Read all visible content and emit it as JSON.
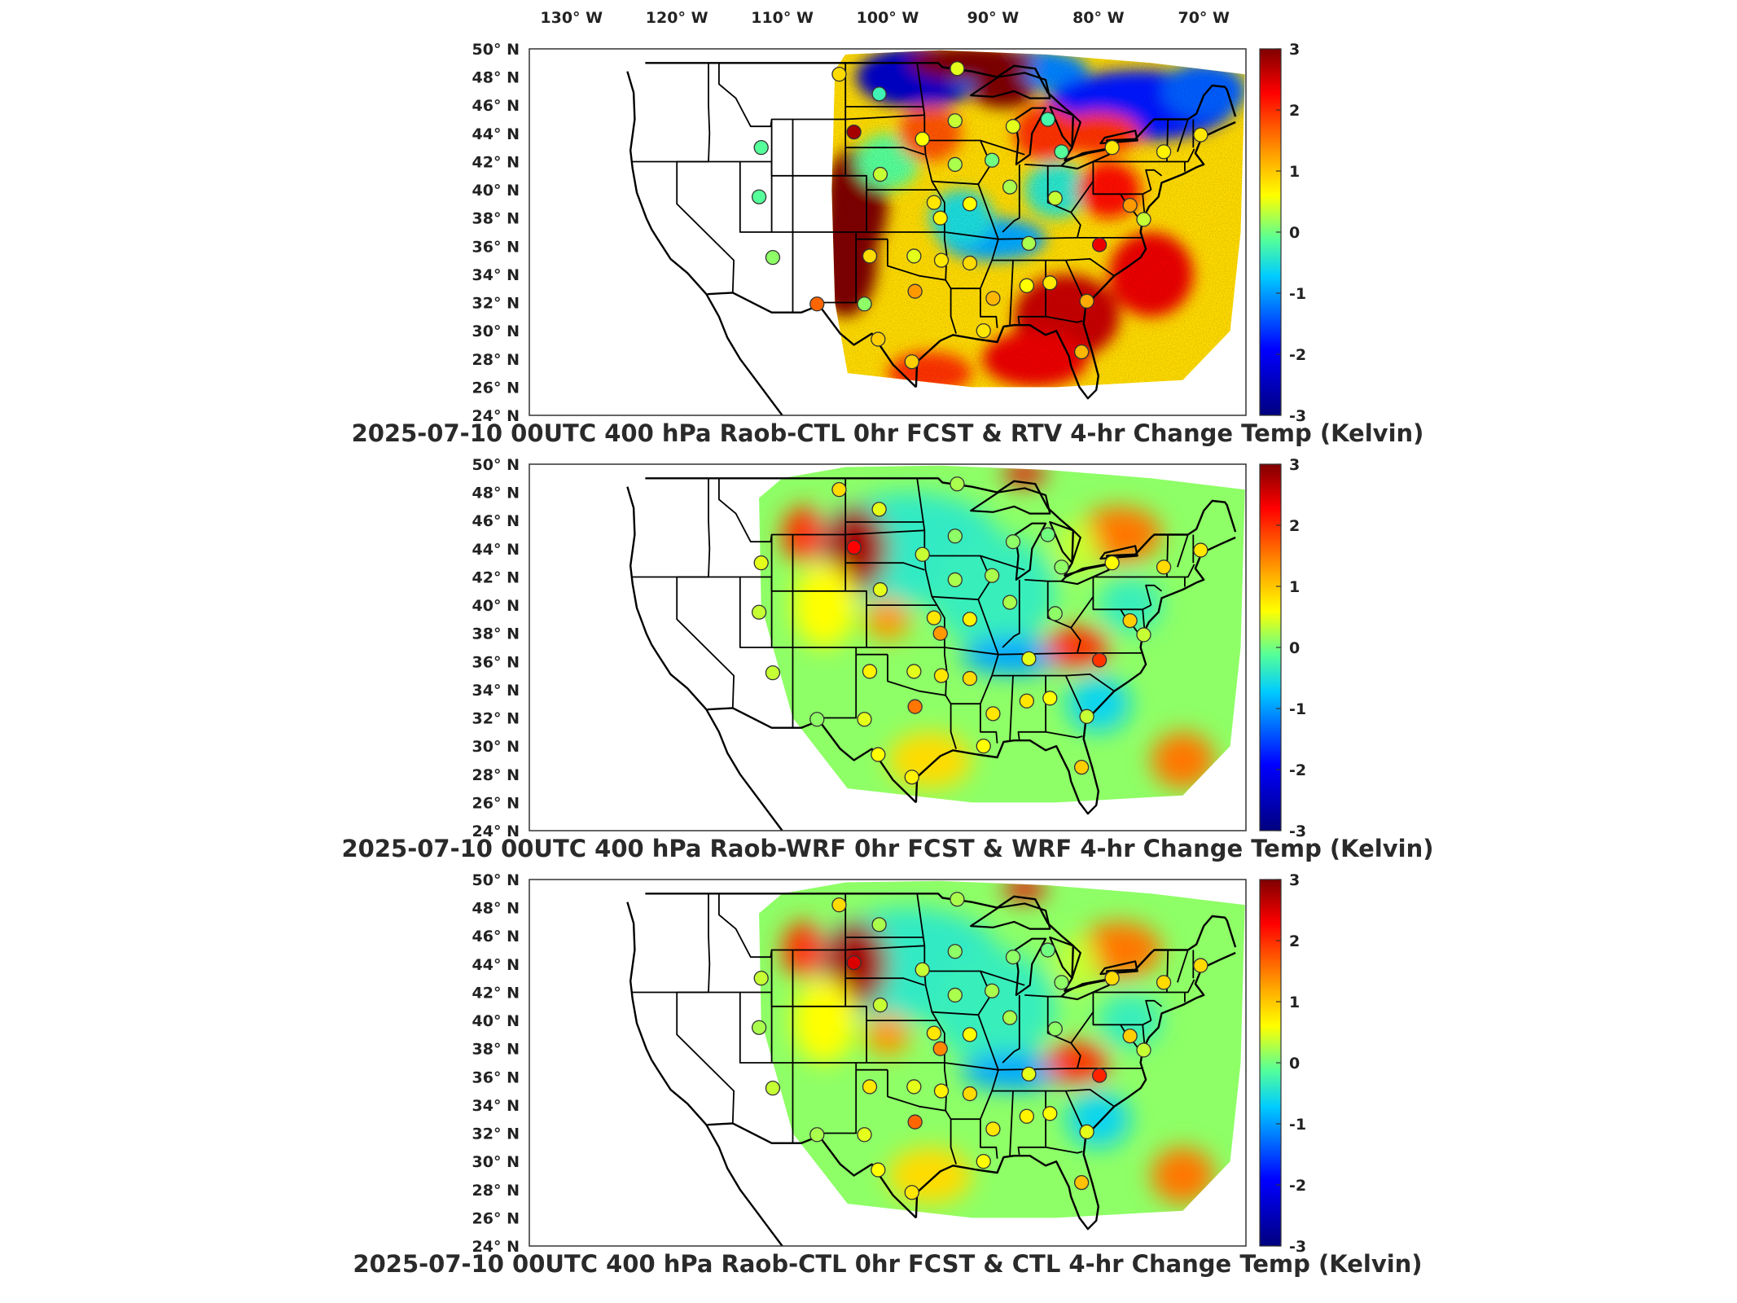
{
  "figure": {
    "longitude_labels": [
      "130",
      "120",
      "110",
      "100",
      "90",
      "80",
      "70"
    ],
    "longitude_suffix": "W",
    "latitude_labels": [
      "50",
      "48",
      "46",
      "44",
      "42",
      "40",
      "38",
      "36",
      "34",
      "32",
      "30",
      "28",
      "26",
      "24"
    ],
    "latitude_suffix": "N",
    "degree_symbol": "°"
  },
  "colorbar": {
    "ticks": [
      "3",
      "2",
      "1",
      "0",
      "-1",
      "-2",
      "-3"
    ],
    "colors": [
      "#7f0000",
      "#ff0000",
      "#ffff00",
      "#55ff99",
      "#00ccff",
      "#0000ff",
      "#00007f"
    ]
  },
  "panels": [
    {
      "title": "2025-07-10 00UTC 400 hPa Raob-CTL 0hr FCST & RTV 4-hr Change Temp (Kelvin)",
      "field_style": "noisy",
      "stations": [
        {
          "lon": -104.6,
          "lat": 48.2,
          "value": 0.9
        },
        {
          "lon": -100.8,
          "lat": 46.8,
          "value": -0.3
        },
        {
          "lon": -103.2,
          "lat": 44.1,
          "value": 2.8
        },
        {
          "lon": -112.0,
          "lat": 43.0,
          "value": 0.0
        },
        {
          "lon": -112.2,
          "lat": 39.5,
          "value": 0.0
        },
        {
          "lon": -110.9,
          "lat": 35.2,
          "value": 0.2
        },
        {
          "lon": -101.7,
          "lat": 35.3,
          "value": 0.9
        },
        {
          "lon": -102.2,
          "lat": 31.9,
          "value": 0.2
        },
        {
          "lon": -106.7,
          "lat": 31.9,
          "value": 1.7
        },
        {
          "lon": -97.4,
          "lat": 32.8,
          "value": 1.4
        },
        {
          "lon": -97.5,
          "lat": 35.3,
          "value": 0.5
        },
        {
          "lon": -94.9,
          "lat": 35.0,
          "value": 0.8
        },
        {
          "lon": -92.2,
          "lat": 34.8,
          "value": 0.9
        },
        {
          "lon": -90.0,
          "lat": 32.3,
          "value": 1.2
        },
        {
          "lon": -86.8,
          "lat": 33.2,
          "value": 0.6
        },
        {
          "lon": -84.6,
          "lat": 33.4,
          "value": 0.8
        },
        {
          "lon": -81.1,
          "lat": 32.1,
          "value": 1.3
        },
        {
          "lon": -79.9,
          "lat": 36.1,
          "value": 2.4
        },
        {
          "lon": -86.6,
          "lat": 36.2,
          "value": 0.3
        },
        {
          "lon": -84.1,
          "lat": 39.4,
          "value": 0.4
        },
        {
          "lon": -88.4,
          "lat": 40.2,
          "value": 0.3
        },
        {
          "lon": -92.2,
          "lat": 39.0,
          "value": 0.6
        },
        {
          "lon": -95.6,
          "lat": 39.1,
          "value": 0.8
        },
        {
          "lon": -100.7,
          "lat": 41.1,
          "value": 0.4
        },
        {
          "lon": -93.6,
          "lat": 41.8,
          "value": 0.3
        },
        {
          "lon": -90.1,
          "lat": 42.1,
          "value": 0.1
        },
        {
          "lon": -88.1,
          "lat": 44.5,
          "value": 0.5
        },
        {
          "lon": -84.8,
          "lat": 45.0,
          "value": -0.2
        },
        {
          "lon": -83.5,
          "lat": 42.7,
          "value": 0.0
        },
        {
          "lon": -93.6,
          "lat": 44.9,
          "value": 0.4
        },
        {
          "lon": -96.7,
          "lat": 43.6,
          "value": 0.6
        },
        {
          "lon": -93.4,
          "lat": 48.6,
          "value": 0.5
        },
        {
          "lon": -78.7,
          "lat": 43.0,
          "value": 0.8
        },
        {
          "lon": -73.8,
          "lat": 42.7,
          "value": 0.7
        },
        {
          "lon": -70.3,
          "lat": 43.9,
          "value": 0.8
        },
        {
          "lon": -77.0,
          "lat": 38.9,
          "value": 1.4
        },
        {
          "lon": -75.7,
          "lat": 37.9,
          "value": 0.4
        },
        {
          "lon": -81.6,
          "lat": 28.5,
          "value": 1.2
        },
        {
          "lon": -97.7,
          "lat": 27.8,
          "value": 1.0
        },
        {
          "lon": -100.9,
          "lat": 29.4,
          "value": 1.0
        },
        {
          "lon": -90.9,
          "lat": 30.0,
          "value": 0.8
        },
        {
          "lon": -95.0,
          "lat": 38.0,
          "value": 0.7
        }
      ]
    },
    {
      "title": "2025-07-10 00UTC 400 hPa Raob-WRF 0hr FCST & WRF 4-hr Change Temp (Kelvin)",
      "field_style": "smooth",
      "stations": [
        {
          "lon": -104.6,
          "lat": 48.2,
          "value": 0.9
        },
        {
          "lon": -100.8,
          "lat": 46.8,
          "value": 0.5
        },
        {
          "lon": -103.2,
          "lat": 44.1,
          "value": 2.3
        },
        {
          "lon": -112.0,
          "lat": 43.0,
          "value": 0.5
        },
        {
          "lon": -112.2,
          "lat": 39.5,
          "value": 0.4
        },
        {
          "lon": -110.9,
          "lat": 35.2,
          "value": 0.4
        },
        {
          "lon": -101.7,
          "lat": 35.3,
          "value": 0.7
        },
        {
          "lon": -102.2,
          "lat": 31.9,
          "value": 0.5
        },
        {
          "lon": -106.7,
          "lat": 31.9,
          "value": 0.2
        },
        {
          "lon": -97.4,
          "lat": 32.8,
          "value": 1.6
        },
        {
          "lon": -97.5,
          "lat": 35.3,
          "value": 0.5
        },
        {
          "lon": -94.9,
          "lat": 35.0,
          "value": 0.8
        },
        {
          "lon": -92.2,
          "lat": 34.8,
          "value": 0.9
        },
        {
          "lon": -90.0,
          "lat": 32.3,
          "value": 0.8
        },
        {
          "lon": -86.8,
          "lat": 33.2,
          "value": 0.8
        },
        {
          "lon": -84.6,
          "lat": 33.4,
          "value": 0.6
        },
        {
          "lon": -81.1,
          "lat": 32.1,
          "value": 0.4
        },
        {
          "lon": -79.9,
          "lat": 36.1,
          "value": 2.0
        },
        {
          "lon": -86.6,
          "lat": 36.2,
          "value": 0.5
        },
        {
          "lon": -84.1,
          "lat": 39.4,
          "value": 0.2
        },
        {
          "lon": -88.4,
          "lat": 40.2,
          "value": 0.3
        },
        {
          "lon": -92.2,
          "lat": 39.0,
          "value": 0.7
        },
        {
          "lon": -95.6,
          "lat": 39.1,
          "value": 0.8
        },
        {
          "lon": -100.7,
          "lat": 41.1,
          "value": 0.5
        },
        {
          "lon": -93.6,
          "lat": 41.8,
          "value": 0.3
        },
        {
          "lon": -90.1,
          "lat": 42.1,
          "value": 0.3
        },
        {
          "lon": -88.1,
          "lat": 44.5,
          "value": 0.2
        },
        {
          "lon": -84.8,
          "lat": 45.0,
          "value": 0.1
        },
        {
          "lon": -83.5,
          "lat": 42.7,
          "value": 0.2
        },
        {
          "lon": -93.6,
          "lat": 44.9,
          "value": 0.2
        },
        {
          "lon": -96.7,
          "lat": 43.6,
          "value": 0.4
        },
        {
          "lon": -93.4,
          "lat": 48.6,
          "value": 0.3
        },
        {
          "lon": -78.7,
          "lat": 43.0,
          "value": 0.6
        },
        {
          "lon": -73.8,
          "lat": 42.7,
          "value": 0.9
        },
        {
          "lon": -70.3,
          "lat": 43.9,
          "value": 0.8
        },
        {
          "lon": -77.0,
          "lat": 38.9,
          "value": 1.0
        },
        {
          "lon": -75.7,
          "lat": 37.9,
          "value": 0.4
        },
        {
          "lon": -81.6,
          "lat": 28.5,
          "value": 1.0
        },
        {
          "lon": -97.7,
          "lat": 27.8,
          "value": 0.7
        },
        {
          "lon": -100.9,
          "lat": 29.4,
          "value": 0.6
        },
        {
          "lon": -90.9,
          "lat": 30.0,
          "value": 0.6
        },
        {
          "lon": -95.0,
          "lat": 38.0,
          "value": 1.4
        }
      ]
    },
    {
      "title": "2025-07-10 00UTC 400 hPa Raob-CTL 0hr FCST & CTL 4-hr Change Temp (Kelvin)",
      "field_style": "smooth",
      "stations": [
        {
          "lon": -104.6,
          "lat": 48.2,
          "value": 0.9
        },
        {
          "lon": -100.8,
          "lat": 46.8,
          "value": 0.3
        },
        {
          "lon": -103.2,
          "lat": 44.1,
          "value": 2.5
        },
        {
          "lon": -112.0,
          "lat": 43.0,
          "value": 0.4
        },
        {
          "lon": -112.2,
          "lat": 39.5,
          "value": 0.3
        },
        {
          "lon": -110.9,
          "lat": 35.2,
          "value": 0.4
        },
        {
          "lon": -101.7,
          "lat": 35.3,
          "value": 0.8
        },
        {
          "lon": -102.2,
          "lat": 31.9,
          "value": 0.5
        },
        {
          "lon": -106.7,
          "lat": 31.9,
          "value": 0.3
        },
        {
          "lon": -97.4,
          "lat": 32.8,
          "value": 1.7
        },
        {
          "lon": -97.5,
          "lat": 35.3,
          "value": 0.5
        },
        {
          "lon": -94.9,
          "lat": 35.0,
          "value": 0.7
        },
        {
          "lon": -92.2,
          "lat": 34.8,
          "value": 0.9
        },
        {
          "lon": -90.0,
          "lat": 32.3,
          "value": 0.8
        },
        {
          "lon": -86.8,
          "lat": 33.2,
          "value": 0.7
        },
        {
          "lon": -84.6,
          "lat": 33.4,
          "value": 0.6
        },
        {
          "lon": -81.1,
          "lat": 32.1,
          "value": 0.5
        },
        {
          "lon": -79.9,
          "lat": 36.1,
          "value": 2.1
        },
        {
          "lon": -86.6,
          "lat": 36.2,
          "value": 0.5
        },
        {
          "lon": -84.1,
          "lat": 39.4,
          "value": 0.2
        },
        {
          "lon": -88.4,
          "lat": 40.2,
          "value": 0.3
        },
        {
          "lon": -92.2,
          "lat": 39.0,
          "value": 0.6
        },
        {
          "lon": -95.6,
          "lat": 39.1,
          "value": 0.8
        },
        {
          "lon": -100.7,
          "lat": 41.1,
          "value": 0.4
        },
        {
          "lon": -93.6,
          "lat": 41.8,
          "value": 0.3
        },
        {
          "lon": -90.1,
          "lat": 42.1,
          "value": 0.3
        },
        {
          "lon": -88.1,
          "lat": 44.5,
          "value": 0.2
        },
        {
          "lon": -84.8,
          "lat": 45.0,
          "value": 0.1
        },
        {
          "lon": -83.5,
          "lat": 42.7,
          "value": 0.2
        },
        {
          "lon": -93.6,
          "lat": 44.9,
          "value": 0.2
        },
        {
          "lon": -96.7,
          "lat": 43.6,
          "value": 0.4
        },
        {
          "lon": -93.4,
          "lat": 48.6,
          "value": 0.3
        },
        {
          "lon": -78.7,
          "lat": 43.0,
          "value": 0.9
        },
        {
          "lon": -73.8,
          "lat": 42.7,
          "value": 0.9
        },
        {
          "lon": -70.3,
          "lat": 43.9,
          "value": 0.9
        },
        {
          "lon": -77.0,
          "lat": 38.9,
          "value": 1.0
        },
        {
          "lon": -75.7,
          "lat": 37.9,
          "value": 0.4
        },
        {
          "lon": -81.6,
          "lat": 28.5,
          "value": 1.1
        },
        {
          "lon": -97.7,
          "lat": 27.8,
          "value": 0.8
        },
        {
          "lon": -100.9,
          "lat": 29.4,
          "value": 0.6
        },
        {
          "lon": -90.9,
          "lat": 30.0,
          "value": 0.6
        },
        {
          "lon": -95.0,
          "lat": 38.0,
          "value": 1.5
        }
      ]
    }
  ]
}
